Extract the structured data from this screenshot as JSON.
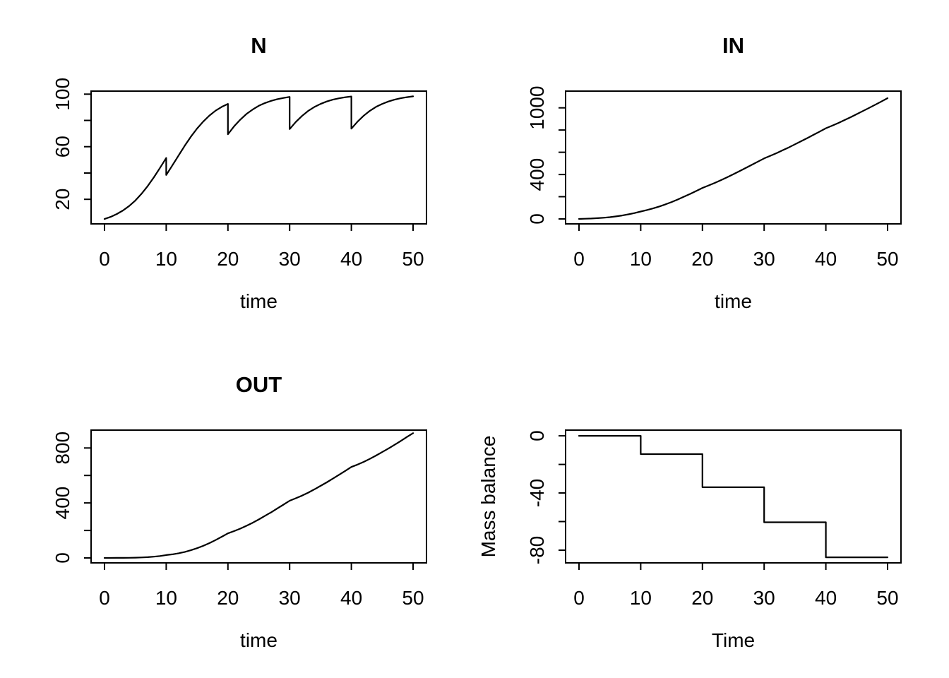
{
  "figure": {
    "background": "#ffffff",
    "stroke": "#000000",
    "text_color": "#000000"
  },
  "chart_data": [
    {
      "id": "N",
      "type": "line",
      "title": "N",
      "xlabel": "time",
      "ylabel": "",
      "xlim": [
        -2.17,
        52.17
      ],
      "ylim": [
        1.3,
        102.3
      ],
      "x_ticks": [
        0,
        10,
        20,
        30,
        40,
        50
      ],
      "x_tick_labels": [
        "0",
        "10",
        "20",
        "30",
        "40",
        "50"
      ],
      "y_ticks": [
        20,
        40,
        60,
        80,
        100
      ],
      "y_tick_labels": [
        "20",
        "",
        "60",
        "",
        "100"
      ],
      "grid": false,
      "legend": "none",
      "series": [
        {
          "name": "N",
          "points": [
            [
              0,
              5
            ],
            [
              1,
              6.6
            ],
            [
              2,
              8.8
            ],
            [
              3,
              11.5
            ],
            [
              4,
              14.9
            ],
            [
              5,
              19.1
            ],
            [
              6,
              24.2
            ],
            [
              7,
              30.1
            ],
            [
              8,
              36.7
            ],
            [
              9,
              43.9
            ],
            [
              10,
              51.4
            ],
            [
              10,
              38.5
            ],
            [
              11,
              45.8
            ],
            [
              12,
              53.3
            ],
            [
              13,
              60.7
            ],
            [
              14,
              67.6
            ],
            [
              15,
              73.8
            ],
            [
              16,
              79.1
            ],
            [
              17,
              83.7
            ],
            [
              18,
              87.4
            ],
            [
              19,
              90.3
            ],
            [
              20,
              92.6
            ],
            [
              20,
              69.5
            ],
            [
              21,
              75.5
            ],
            [
              22,
              80.6
            ],
            [
              23,
              84.9
            ],
            [
              24,
              88.3
            ],
            [
              25,
              91.1
            ],
            [
              26,
              93.2
            ],
            [
              27,
              94.9
            ],
            [
              28,
              96.2
            ],
            [
              29,
              97.1
            ],
            [
              30,
              97.9
            ],
            [
              30,
              73.4
            ],
            [
              31,
              78.8
            ],
            [
              32,
              83.4
            ],
            [
              33,
              87.2
            ],
            [
              34,
              90.2
            ],
            [
              35,
              92.5
            ],
            [
              36,
              94.4
            ],
            [
              37,
              95.8
            ],
            [
              38,
              96.8
            ],
            [
              39,
              97.6
            ],
            [
              40,
              98.2
            ],
            [
              40,
              73.7
            ],
            [
              41,
              79.1
            ],
            [
              42,
              83.6
            ],
            [
              43,
              87.3
            ],
            [
              44,
              90.3
            ],
            [
              45,
              92.6
            ],
            [
              46,
              94.4
            ],
            [
              47,
              95.8
            ],
            [
              48,
              96.9
            ],
            [
              49,
              97.7
            ],
            [
              50,
              98.3
            ]
          ]
        }
      ]
    },
    {
      "id": "IN",
      "type": "line",
      "title": "IN",
      "xlabel": "time",
      "ylabel": "",
      "xlim": [
        -2.17,
        52.17
      ],
      "ylim": [
        -44.5,
        1150.5
      ],
      "x_ticks": [
        0,
        10,
        20,
        30,
        40,
        50
      ],
      "x_tick_labels": [
        "0",
        "10",
        "20",
        "30",
        "40",
        "50"
      ],
      "y_ticks": [
        0,
        200,
        400,
        600,
        800,
        1000
      ],
      "y_tick_labels": [
        "0",
        "",
        "400",
        "",
        "",
        "1000"
      ],
      "grid": false,
      "legend": "none",
      "series": [
        {
          "name": "IN",
          "points": [
            [
              0,
              0
            ],
            [
              1,
              2
            ],
            [
              2,
              4
            ],
            [
              3,
              7
            ],
            [
              4,
              11
            ],
            [
              5,
              16
            ],
            [
              6,
              23
            ],
            [
              7,
              31
            ],
            [
              8,
              41
            ],
            [
              9,
              53
            ],
            [
              10,
              67
            ],
            [
              11,
              80
            ],
            [
              12,
              95
            ],
            [
              13,
              112
            ],
            [
              14,
              131
            ],
            [
              15,
              152
            ],
            [
              16,
              175
            ],
            [
              17,
              200
            ],
            [
              18,
              225
            ],
            [
              19,
              252
            ],
            [
              20,
              279
            ],
            [
              21,
              301
            ],
            [
              22,
              324
            ],
            [
              23,
              349
            ],
            [
              24,
              375
            ],
            [
              25,
              402
            ],
            [
              26,
              430
            ],
            [
              27,
              458
            ],
            [
              28,
              487
            ],
            [
              29,
              516
            ],
            [
              30,
              545
            ],
            [
              31,
              568
            ],
            [
              32,
              592
            ],
            [
              33,
              618
            ],
            [
              34,
              644
            ],
            [
              35,
              672
            ],
            [
              36,
              700
            ],
            [
              37,
              728
            ],
            [
              38,
              757
            ],
            [
              39,
              786
            ],
            [
              40,
              816
            ],
            [
              41,
              839
            ],
            [
              42,
              863
            ],
            [
              43,
              889
            ],
            [
              44,
              915
            ],
            [
              45,
              943
            ],
            [
              46,
              971
            ],
            [
              47,
              999
            ],
            [
              48,
              1028
            ],
            [
              49,
              1057
            ],
            [
              50,
              1087
            ]
          ]
        }
      ]
    },
    {
      "id": "OUT",
      "type": "line",
      "title": "OUT",
      "xlabel": "time",
      "ylabel": "",
      "xlim": [
        -2.17,
        52.17
      ],
      "ylim": [
        -36,
        930
      ],
      "x_ticks": [
        0,
        10,
        20,
        30,
        40,
        50
      ],
      "x_tick_labels": [
        "0",
        "10",
        "20",
        "30",
        "40",
        "50"
      ],
      "y_ticks": [
        0,
        200,
        400,
        600,
        800
      ],
      "y_tick_labels": [
        "0",
        "",
        "400",
        "",
        "800"
      ],
      "grid": false,
      "legend": "none",
      "series": [
        {
          "name": "OUT",
          "points": [
            [
              0,
              0
            ],
            [
              1,
              0.1
            ],
            [
              2,
              0.3
            ],
            [
              3,
              0.6
            ],
            [
              4,
              1.1
            ],
            [
              5,
              2
            ],
            [
              6,
              3.4
            ],
            [
              7,
              5.7
            ],
            [
              8,
              9
            ],
            [
              9,
              14
            ],
            [
              10,
              21
            ],
            [
              11,
              26
            ],
            [
              12,
              34
            ],
            [
              13,
              43
            ],
            [
              14,
              56
            ],
            [
              15,
              71
            ],
            [
              16,
              88
            ],
            [
              17,
              108
            ],
            [
              18,
              130
            ],
            [
              19,
              154
            ],
            [
              20,
              179
            ],
            [
              21,
              195
            ],
            [
              22,
              213
            ],
            [
              23,
              234
            ],
            [
              24,
              256
            ],
            [
              25,
              280
            ],
            [
              26,
              306
            ],
            [
              27,
              332
            ],
            [
              28,
              360
            ],
            [
              29,
              388
            ],
            [
              30,
              416
            ],
            [
              31,
              434
            ],
            [
              32,
              453
            ],
            [
              33,
              475
            ],
            [
              34,
              499
            ],
            [
              35,
              524
            ],
            [
              36,
              550
            ],
            [
              37,
              577
            ],
            [
              38,
              605
            ],
            [
              39,
              633
            ],
            [
              40,
              662
            ],
            [
              41,
              679
            ],
            [
              42,
              699
            ],
            [
              43,
              721
            ],
            [
              44,
              745
            ],
            [
              45,
              770
            ],
            [
              46,
              796
            ],
            [
              47,
              823
            ],
            [
              48,
              851
            ],
            [
              49,
              880
            ],
            [
              50,
              908
            ]
          ]
        }
      ]
    },
    {
      "id": "mass-balance",
      "type": "line",
      "title": "",
      "xlabel": "Time",
      "ylabel": "Mass balance",
      "xlim": [
        -2.17,
        52.17
      ],
      "ylim": [
        -88.9,
        4.0
      ],
      "x_ticks": [
        0,
        10,
        20,
        30,
        40,
        50
      ],
      "x_tick_labels": [
        "0",
        "10",
        "20",
        "30",
        "40",
        "50"
      ],
      "y_ticks": [
        0,
        -20,
        -40,
        -60,
        -80
      ],
      "y_tick_labels": [
        "0",
        "",
        "-40",
        "",
        "-80"
      ],
      "grid": false,
      "legend": "none",
      "series": [
        {
          "name": "mass-balance-step",
          "points": [
            [
              0,
              0
            ],
            [
              10,
              0
            ],
            [
              10,
              -12.8
            ],
            [
              20,
              -12.8
            ],
            [
              20,
              -36
            ],
            [
              30,
              -36
            ],
            [
              30,
              -60.5
            ],
            [
              40,
              -60.5
            ],
            [
              40,
              -85
            ],
            [
              50,
              -85
            ]
          ]
        }
      ]
    }
  ]
}
